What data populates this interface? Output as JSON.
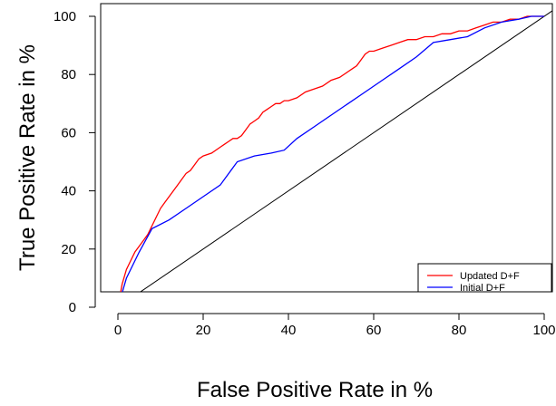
{
  "chart_data": {
    "type": "line",
    "title": "",
    "xlabel": "False Positive Rate in %",
    "ylabel": "True Positive Rate in %",
    "xlim": [
      0,
      100
    ],
    "ylim": [
      0,
      100
    ],
    "x_ticks": [
      0,
      20,
      40,
      60,
      80,
      100
    ],
    "y_ticks": [
      0,
      20,
      40,
      60,
      80,
      100
    ],
    "grid": false,
    "legend_position": "bottom-right",
    "series": [
      {
        "name": "Updated D+F",
        "color": "#ff0000",
        "x": [
          0,
          1,
          2,
          3,
          4,
          5,
          6,
          7,
          8,
          9,
          10,
          11,
          12,
          13,
          14,
          15,
          16,
          17,
          18,
          19,
          20,
          22,
          24,
          25,
          26,
          27,
          28,
          29,
          30,
          31,
          32,
          33,
          34,
          35,
          36,
          37,
          38,
          39,
          40,
          42,
          44,
          46,
          48,
          50,
          52,
          54,
          55,
          56,
          57,
          58,
          59,
          60,
          62,
          64,
          66,
          68,
          70,
          72,
          74,
          76,
          78,
          80,
          82,
          84,
          86,
          88,
          90,
          92,
          94,
          96,
          98,
          100
        ],
        "y": [
          0,
          8,
          13,
          16,
          19,
          21,
          23,
          25,
          28,
          31,
          34,
          36,
          38,
          40,
          42,
          44,
          46,
          47,
          49,
          51,
          52,
          53,
          55,
          56,
          57,
          58,
          58,
          59,
          61,
          63,
          64,
          65,
          67,
          68,
          69,
          70,
          70,
          71,
          71,
          72,
          74,
          75,
          76,
          78,
          79,
          81,
          82,
          83,
          85,
          87,
          88,
          88,
          89,
          90,
          91,
          92,
          92,
          93,
          93,
          94,
          94,
          95,
          95,
          96,
          97,
          98,
          98,
          99,
          99,
          100,
          100,
          100
        ]
      },
      {
        "name": "Initial D+F",
        "color": "#0000ff",
        "x": [
          0,
          2,
          5,
          8,
          12,
          16,
          20,
          24,
          28,
          32,
          36,
          39,
          42,
          46,
          50,
          54,
          58,
          62,
          66,
          70,
          74,
          78,
          82,
          86,
          90,
          94,
          97,
          100
        ],
        "y": [
          0,
          10,
          19,
          27,
          30,
          34,
          38,
          42,
          50,
          52,
          53,
          54,
          58,
          62,
          66,
          70,
          74,
          78,
          82,
          86,
          91,
          92,
          93,
          96,
          98,
          99,
          100,
          100
        ]
      }
    ],
    "diagonal_reference": true
  }
}
